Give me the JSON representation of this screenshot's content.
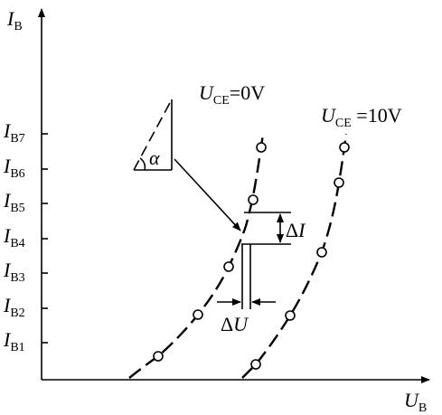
{
  "axes": {
    "y_label": {
      "symbol": "I",
      "subscript": "B"
    },
    "x_label": {
      "symbol": "U",
      "subscript": "B"
    }
  },
  "y_ticks": [
    {
      "symbol": "I",
      "subscript": "B7"
    },
    {
      "symbol": "I",
      "subscript": "B6"
    },
    {
      "symbol": "I",
      "subscript": "B5"
    },
    {
      "symbol": "I",
      "subscript": "B4"
    },
    {
      "symbol": "I",
      "subscript": "B3"
    },
    {
      "symbol": "I",
      "subscript": "B2"
    },
    {
      "symbol": "I",
      "subscript": "B1"
    }
  ],
  "curves": [
    {
      "symbol": "U",
      "subscript": "CE",
      "rest": "=0V"
    },
    {
      "symbol": "U",
      "subscript": "CE",
      "rest": " =10V"
    }
  ],
  "annotations": {
    "angle": "α",
    "delta_i": {
      "delta": "Δ",
      "symbol": "I"
    },
    "delta_u": {
      "delta": "Δ",
      "symbol": "U"
    }
  }
}
